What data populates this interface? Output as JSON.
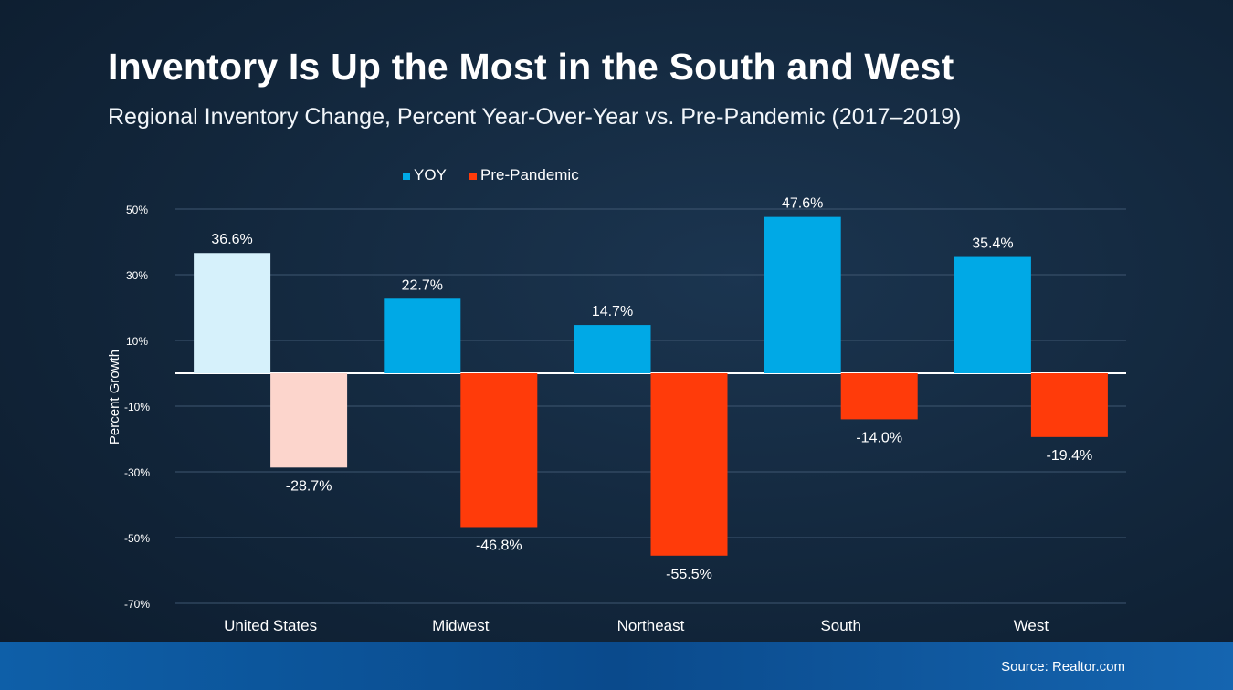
{
  "header": {
    "title": "Inventory Is Up the Most in the South and West",
    "subtitle": "Regional Inventory Change, Percent Year-Over-Year vs. Pre-Pandemic (2017–2019)"
  },
  "footer": {
    "source": "Source: Realtor.com"
  },
  "chart_data": {
    "type": "bar",
    "categories": [
      "United States",
      "Midwest",
      "Northeast",
      "South",
      "West"
    ],
    "series": [
      {
        "name": "YOY",
        "values": [
          36.6,
          22.7,
          14.7,
          47.6,
          35.4
        ],
        "labels": [
          "36.6%",
          "22.7%",
          "14.7%",
          "47.6%",
          "35.4%"
        ],
        "color": "#00a9e6",
        "first_color": "#d6f1fb"
      },
      {
        "name": "Pre-Pandemic",
        "values": [
          -28.7,
          -46.8,
          -55.5,
          -14.0,
          -19.4
        ],
        "labels": [
          "-28.7%",
          "-46.8%",
          "-55.5%",
          "-14.0%",
          "-19.4%"
        ],
        "color": "#ff3b0a",
        "first_color": "#fcd5cc"
      }
    ],
    "ylabel": "Percent Growth",
    "ylim": [
      -70,
      50
    ],
    "yticks": [
      50,
      30,
      10,
      -10,
      -30,
      -50,
      -70
    ],
    "ytick_labels": [
      "50%",
      "30%",
      "10%",
      "-10%",
      "-30%",
      "-50%",
      "-70%"
    ],
    "legend_position": "top-center",
    "grid": true
  }
}
